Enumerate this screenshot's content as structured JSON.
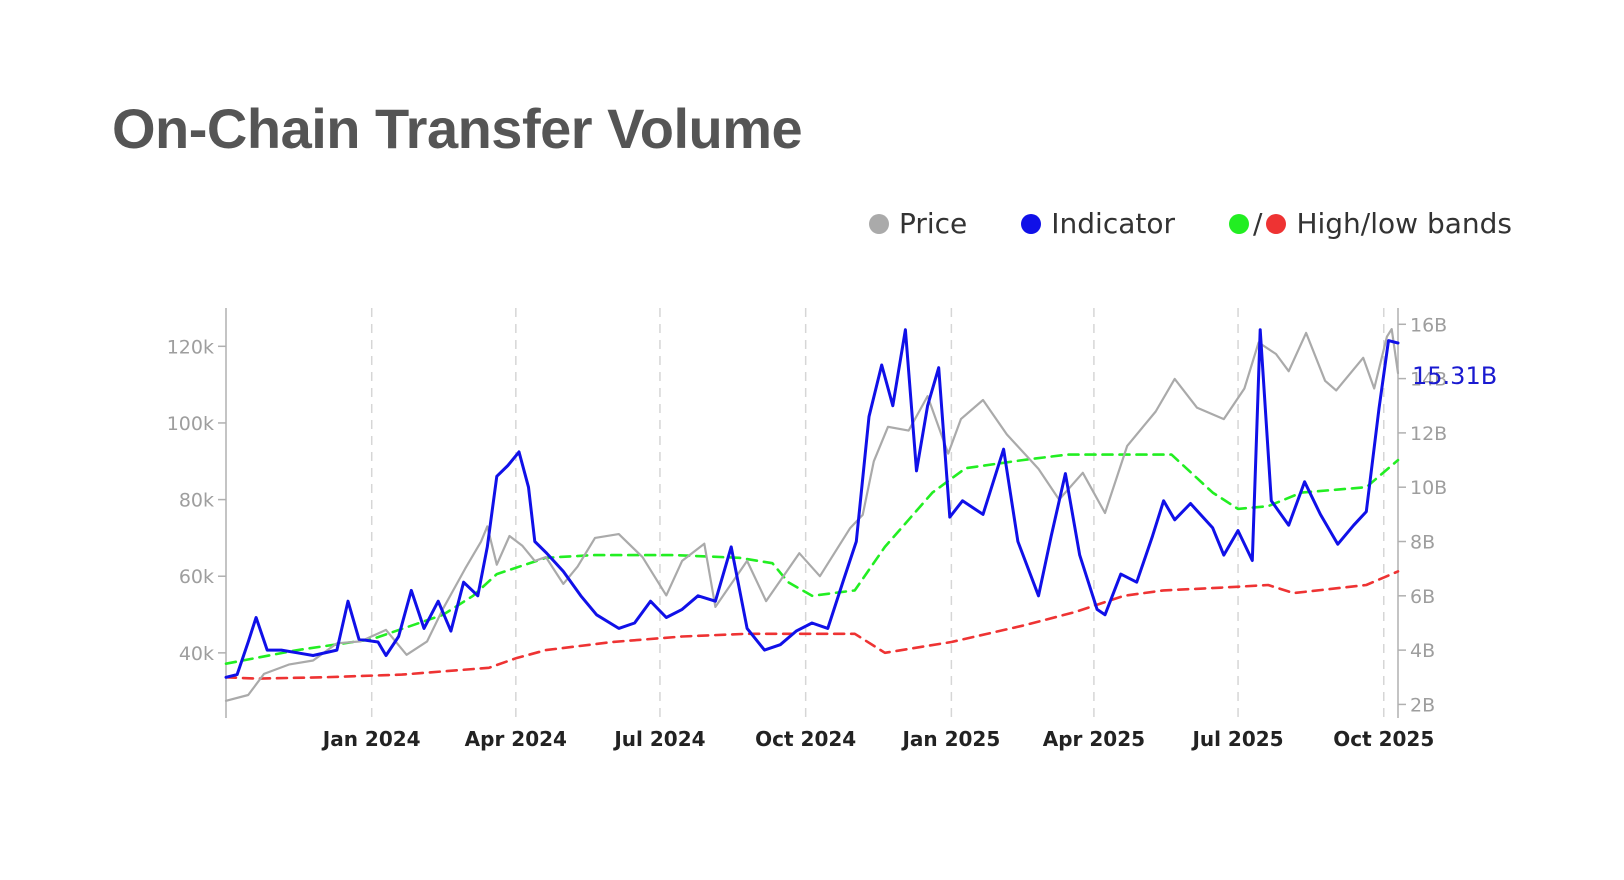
{
  "page": {
    "title": "On-Chain Transfer Volume"
  },
  "legend": {
    "price": {
      "label": "Price",
      "color": "#aaaaaa"
    },
    "indicator": {
      "label": "Indicator",
      "color": "#1010e8"
    },
    "bands": {
      "label": "High/low bands",
      "high_color": "#22ee22",
      "low_color": "#ee3333",
      "separator": "/"
    }
  },
  "chart_data": {
    "type": "line",
    "title": "On-Chain Transfer Volume",
    "x_start": "2023-10-01",
    "x_end": "2025-10-10",
    "x_ticks": [
      "2024-01-01",
      "2024-04-01",
      "2024-07-01",
      "2024-10-01",
      "2025-01-01",
      "2025-04-01",
      "2025-07-01",
      "2025-10-01"
    ],
    "x_tick_labels": [
      "Jan 2024",
      "Apr 2024",
      "Jul 2024",
      "Oct 2024",
      "Jan 2025",
      "Apr 2025",
      "Jul 2025",
      "Oct 2025"
    ],
    "y_left": {
      "ticks": [
        40000,
        60000,
        80000,
        100000,
        120000
      ],
      "tick_labels": [
        "40k",
        "60k",
        "80k",
        "100k",
        "120k"
      ],
      "range": [
        23000,
        130000
      ]
    },
    "y_right": {
      "ticks": [
        2,
        4,
        6,
        8,
        10,
        12,
        14,
        16
      ],
      "tick_labels": [
        "2B",
        "4B",
        "6B",
        "8B",
        "10B",
        "12B",
        "14B",
        "16B"
      ],
      "range": [
        1.5,
        16.6
      ],
      "unit": "B"
    },
    "grid": {
      "vertical_dashed": true,
      "horizontal": false
    },
    "legend_position": "top-right",
    "last_value_label": "15.31B",
    "series": [
      {
        "name": "Price",
        "axis": "left",
        "color": "#aaaaaa",
        "style": "solid",
        "points": [
          [
            "2023-10-01",
            27500
          ],
          [
            "2023-10-15",
            29000
          ],
          [
            "2023-10-25",
            34500
          ],
          [
            "2023-11-10",
            37000
          ],
          [
            "2023-11-25",
            38000
          ],
          [
            "2023-12-10",
            42500
          ],
          [
            "2023-12-25",
            43000
          ],
          [
            "2024-01-10",
            46000
          ],
          [
            "2024-01-23",
            39500
          ],
          [
            "2024-02-05",
            43000
          ],
          [
            "2024-02-15",
            51500
          ],
          [
            "2024-02-29",
            62000
          ],
          [
            "2024-03-10",
            69000
          ],
          [
            "2024-03-14",
            73000
          ],
          [
            "2024-03-20",
            63000
          ],
          [
            "2024-03-28",
            70500
          ],
          [
            "2024-04-05",
            68000
          ],
          [
            "2024-04-13",
            64000
          ],
          [
            "2024-04-20",
            65000
          ],
          [
            "2024-05-01",
            58000
          ],
          [
            "2024-05-10",
            62500
          ],
          [
            "2024-05-21",
            70000
          ],
          [
            "2024-06-05",
            71000
          ],
          [
            "2024-06-20",
            65000
          ],
          [
            "2024-07-05",
            55000
          ],
          [
            "2024-07-15",
            64000
          ],
          [
            "2024-07-29",
            68500
          ],
          [
            "2024-08-05",
            52000
          ],
          [
            "2024-08-25",
            64000
          ],
          [
            "2024-09-06",
            53500
          ],
          [
            "2024-09-27",
            66000
          ],
          [
            "2024-10-10",
            60000
          ],
          [
            "2024-10-29",
            72500
          ],
          [
            "2024-11-06",
            76000
          ],
          [
            "2024-11-13",
            90000
          ],
          [
            "2024-11-22",
            99000
          ],
          [
            "2024-12-05",
            98000
          ],
          [
            "2024-12-17",
            107000
          ],
          [
            "2024-12-30",
            92000
          ],
          [
            "2025-01-07",
            101000
          ],
          [
            "2025-01-21",
            106000
          ],
          [
            "2025-02-05",
            97000
          ],
          [
            "2025-02-25",
            88000
          ],
          [
            "2025-03-10",
            80000
          ],
          [
            "2025-03-25",
            87000
          ],
          [
            "2025-04-08",
            76500
          ],
          [
            "2025-04-22",
            94000
          ],
          [
            "2025-05-10",
            103000
          ],
          [
            "2025-05-22",
            111500
          ],
          [
            "2025-06-05",
            104000
          ],
          [
            "2025-06-22",
            101000
          ],
          [
            "2025-07-05",
            109000
          ],
          [
            "2025-07-14",
            121000
          ],
          [
            "2025-07-25",
            118000
          ],
          [
            "2025-08-02",
            113500
          ],
          [
            "2025-08-13",
            123500
          ],
          [
            "2025-08-25",
            111000
          ],
          [
            "2025-09-01",
            108500
          ],
          [
            "2025-09-18",
            117000
          ],
          [
            "2025-09-25",
            109000
          ],
          [
            "2025-10-03",
            122500
          ],
          [
            "2025-10-06",
            124500
          ],
          [
            "2025-10-10",
            113000
          ]
        ]
      },
      {
        "name": "Indicator",
        "axis": "right",
        "color": "#1010e8",
        "style": "solid",
        "points": [
          [
            "2023-10-01",
            3.0
          ],
          [
            "2023-10-08",
            3.1
          ],
          [
            "2023-10-15",
            4.3
          ],
          [
            "2023-10-20",
            5.2
          ],
          [
            "2023-10-27",
            4.0
          ],
          [
            "2023-11-05",
            4.0
          ],
          [
            "2023-11-15",
            3.9
          ],
          [
            "2023-11-25",
            3.8
          ],
          [
            "2023-12-10",
            4.0
          ],
          [
            "2023-12-17",
            5.8
          ],
          [
            "2023-12-24",
            4.4
          ],
          [
            "2024-01-05",
            4.3
          ],
          [
            "2024-01-10",
            3.8
          ],
          [
            "2024-01-18",
            4.5
          ],
          [
            "2024-01-26",
            6.2
          ],
          [
            "2024-02-03",
            4.8
          ],
          [
            "2024-02-12",
            5.8
          ],
          [
            "2024-02-20",
            4.7
          ],
          [
            "2024-02-28",
            6.5
          ],
          [
            "2024-03-08",
            6.0
          ],
          [
            "2024-03-14",
            7.8
          ],
          [
            "2024-03-20",
            10.4
          ],
          [
            "2024-03-27",
            10.8
          ],
          [
            "2024-04-03",
            11.3
          ],
          [
            "2024-04-09",
            10.0
          ],
          [
            "2024-04-13",
            8.0
          ],
          [
            "2024-04-20",
            7.6
          ],
          [
            "2024-05-01",
            6.9
          ],
          [
            "2024-05-12",
            6.0
          ],
          [
            "2024-05-22",
            5.3
          ],
          [
            "2024-06-05",
            4.8
          ],
          [
            "2024-06-15",
            5.0
          ],
          [
            "2024-06-25",
            5.8
          ],
          [
            "2024-07-05",
            5.2
          ],
          [
            "2024-07-15",
            5.5
          ],
          [
            "2024-07-25",
            6.0
          ],
          [
            "2024-08-05",
            5.8
          ],
          [
            "2024-08-15",
            7.8
          ],
          [
            "2024-08-25",
            4.8
          ],
          [
            "2024-09-05",
            4.0
          ],
          [
            "2024-09-15",
            4.2
          ],
          [
            "2024-09-25",
            4.7
          ],
          [
            "2024-10-05",
            5.0
          ],
          [
            "2024-10-15",
            4.8
          ],
          [
            "2024-10-25",
            6.6
          ],
          [
            "2024-11-02",
            8.0
          ],
          [
            "2024-11-10",
            12.6
          ],
          [
            "2024-11-18",
            14.5
          ],
          [
            "2024-11-25",
            13.0
          ],
          [
            "2024-12-03",
            15.8
          ],
          [
            "2024-12-10",
            10.6
          ],
          [
            "2024-12-17",
            13.0
          ],
          [
            "2024-12-24",
            14.4
          ],
          [
            "2024-12-31",
            8.9
          ],
          [
            "2025-01-08",
            9.5
          ],
          [
            "2025-01-21",
            9.0
          ],
          [
            "2025-02-03",
            11.4
          ],
          [
            "2025-02-12",
            8.0
          ],
          [
            "2025-02-25",
            6.0
          ],
          [
            "2025-03-05",
            8.2
          ],
          [
            "2025-03-14",
            10.5
          ],
          [
            "2025-03-23",
            7.5
          ],
          [
            "2025-04-03",
            5.5
          ],
          [
            "2025-04-08",
            5.3
          ],
          [
            "2025-04-18",
            6.8
          ],
          [
            "2025-04-28",
            6.5
          ],
          [
            "2025-05-08",
            8.2
          ],
          [
            "2025-05-15",
            9.5
          ],
          [
            "2025-05-22",
            8.8
          ],
          [
            "2025-06-01",
            9.4
          ],
          [
            "2025-06-15",
            8.5
          ],
          [
            "2025-06-22",
            7.5
          ],
          [
            "2025-07-01",
            8.4
          ],
          [
            "2025-07-10",
            7.3
          ],
          [
            "2025-07-15",
            15.8
          ],
          [
            "2025-07-22",
            9.5
          ],
          [
            "2025-08-02",
            8.6
          ],
          [
            "2025-08-12",
            10.2
          ],
          [
            "2025-08-22",
            9.0
          ],
          [
            "2025-09-02",
            7.9
          ],
          [
            "2025-09-12",
            8.6
          ],
          [
            "2025-09-20",
            9.1
          ],
          [
            "2025-09-28",
            12.9
          ],
          [
            "2025-10-04",
            15.4
          ],
          [
            "2025-10-10",
            15.31
          ]
        ]
      },
      {
        "name": "High band",
        "axis": "right",
        "color": "#22ee22",
        "style": "dashed",
        "points": [
          [
            "2023-10-01",
            3.5
          ],
          [
            "2023-11-15",
            4.0
          ],
          [
            "2024-01-01",
            4.4
          ],
          [
            "2024-02-15",
            5.3
          ],
          [
            "2024-03-05",
            6.0
          ],
          [
            "2024-03-20",
            6.8
          ],
          [
            "2024-04-20",
            7.4
          ],
          [
            "2024-05-20",
            7.5
          ],
          [
            "2024-07-10",
            7.5
          ],
          [
            "2024-08-20",
            7.4
          ],
          [
            "2024-09-10",
            7.2
          ],
          [
            "2024-09-20",
            6.5
          ],
          [
            "2024-10-05",
            6.0
          ],
          [
            "2024-11-01",
            6.2
          ],
          [
            "2024-11-20",
            7.8
          ],
          [
            "2024-12-20",
            9.8
          ],
          [
            "2025-01-10",
            10.7
          ],
          [
            "2025-02-15",
            11.0
          ],
          [
            "2025-03-15",
            11.2
          ],
          [
            "2025-04-15",
            11.2
          ],
          [
            "2025-05-20",
            11.2
          ],
          [
            "2025-06-15",
            9.8
          ],
          [
            "2025-07-01",
            9.2
          ],
          [
            "2025-07-20",
            9.3
          ],
          [
            "2025-08-10",
            9.8
          ],
          [
            "2025-09-20",
            10.0
          ],
          [
            "2025-10-10",
            11.0
          ]
        ]
      },
      {
        "name": "Low band",
        "axis": "right",
        "color": "#ee3333",
        "style": "dashed",
        "points": [
          [
            "2023-10-01",
            3.0
          ],
          [
            "2023-10-20",
            2.95
          ],
          [
            "2023-12-01",
            3.0
          ],
          [
            "2024-01-20",
            3.1
          ],
          [
            "2024-03-15",
            3.35
          ],
          [
            "2024-04-01",
            3.7
          ],
          [
            "2024-04-20",
            4.0
          ],
          [
            "2024-06-01",
            4.3
          ],
          [
            "2024-07-15",
            4.5
          ],
          [
            "2024-08-25",
            4.6
          ],
          [
            "2024-10-01",
            4.6
          ],
          [
            "2024-11-01",
            4.6
          ],
          [
            "2024-11-20",
            3.9
          ],
          [
            "2025-01-01",
            4.3
          ],
          [
            "2025-02-15",
            4.9
          ],
          [
            "2025-03-20",
            5.4
          ],
          [
            "2025-04-20",
            6.0
          ],
          [
            "2025-05-15",
            6.2
          ],
          [
            "2025-06-20",
            6.3
          ],
          [
            "2025-07-20",
            6.4
          ],
          [
            "2025-08-05",
            6.1
          ],
          [
            "2025-09-20",
            6.4
          ],
          [
            "2025-10-10",
            6.9
          ]
        ]
      }
    ]
  }
}
